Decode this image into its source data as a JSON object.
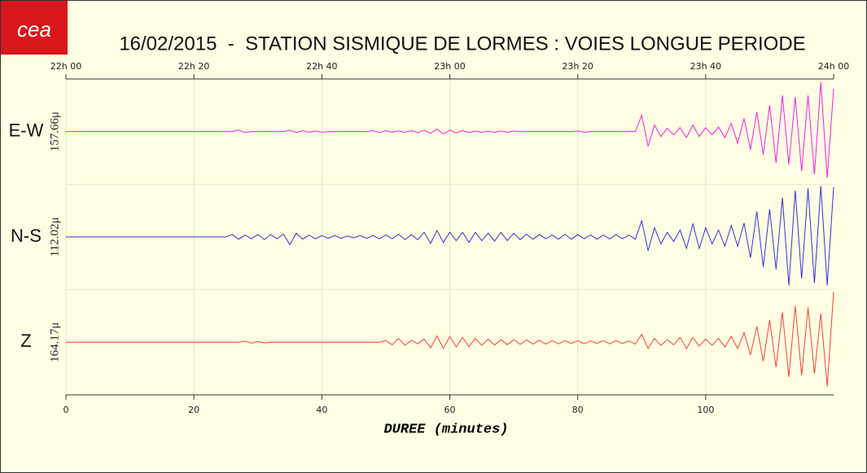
{
  "logo": "cea",
  "chart_data": {
    "type": "seismogram",
    "title": "16/02/2015  -  STATION SISMIQUE DE LORMES : VOIES LONGUE PERIODE",
    "xlabel": "DUREE (minutes)",
    "xlim": [
      0,
      120
    ],
    "xticks": [
      0,
      20,
      40,
      60,
      80,
      100
    ],
    "x2ticks": [
      {
        "value": 0,
        "label": "22h 00"
      },
      {
        "value": 20,
        "label": "22h 20"
      },
      {
        "value": 40,
        "label": "22h 40"
      },
      {
        "value": 60,
        "label": "23h 00"
      },
      {
        "value": 80,
        "label": "23h 20"
      },
      {
        "value": 100,
        "label": "23h 40"
      },
      {
        "value": 120,
        "label": "24h 00"
      }
    ],
    "grid": true,
    "x": [
      0,
      1,
      2,
      3,
      4,
      5,
      6,
      7,
      8,
      9,
      10,
      11,
      12,
      13,
      14,
      15,
      16,
      17,
      18,
      19,
      20,
      21,
      22,
      23,
      24,
      25,
      26,
      27,
      28,
      29,
      30,
      31,
      32,
      33,
      34,
      35,
      36,
      37,
      38,
      39,
      40,
      41,
      42,
      43,
      44,
      45,
      46,
      47,
      48,
      49,
      50,
      51,
      52,
      53,
      54,
      55,
      56,
      57,
      58,
      59,
      60,
      61,
      62,
      63,
      64,
      65,
      66,
      67,
      68,
      69,
      70,
      71,
      72,
      73,
      74,
      75,
      76,
      77,
      78,
      79,
      80,
      81,
      82,
      83,
      84,
      85,
      86,
      87,
      88,
      89,
      90,
      91,
      92,
      93,
      94,
      95,
      96,
      97,
      98,
      99,
      100,
      101,
      102,
      103,
      104,
      105,
      106,
      107,
      108,
      109,
      110,
      111,
      112,
      113,
      114,
      115,
      116,
      117,
      118,
      119,
      120
    ],
    "series": [
      {
        "name": "E-W",
        "scale_label": "157.66μ",
        "ylim": [
          -157.66,
          157.66
        ],
        "color": "#ee22dd",
        "values": [
          0,
          0,
          0,
          0,
          0,
          0,
          0,
          0,
          0,
          0,
          0,
          0,
          0,
          0,
          0,
          0,
          0,
          0,
          0,
          0,
          0,
          0,
          0,
          0,
          0,
          0,
          0,
          5,
          -3,
          0,
          0,
          0,
          0,
          0,
          0,
          4,
          -3,
          3,
          -2,
          2,
          -2,
          0,
          0,
          0,
          0,
          0,
          0,
          0,
          3,
          -3,
          3,
          -2,
          2,
          -2,
          3,
          -3,
          4,
          -5,
          8,
          -7,
          5,
          -4,
          3,
          -3,
          2,
          -2,
          2,
          -2,
          2,
          -2,
          2,
          0,
          0,
          0,
          0,
          0,
          0,
          0,
          0,
          0,
          2,
          -2,
          0,
          0,
          0,
          0,
          0,
          0,
          0,
          0,
          50,
          -45,
          20,
          -15,
          10,
          -10,
          12,
          -18,
          20,
          -15,
          12,
          -10,
          14,
          -18,
          25,
          -35,
          40,
          -55,
          60,
          -70,
          80,
          -95,
          110,
          -100,
          105,
          -120,
          110,
          -130,
          150,
          -140,
          130
        ]
      },
      {
        "name": "N-S",
        "scale_label": "112.02μ",
        "ylim": [
          -112.02,
          112.02
        ],
        "color": "#3333dd",
        "values": [
          0,
          0,
          0,
          0,
          0,
          0,
          0,
          0,
          0,
          0,
          0,
          0,
          0,
          0,
          0,
          0,
          0,
          0,
          0,
          0,
          0,
          0,
          0,
          0,
          0,
          0,
          5,
          -5,
          4,
          -4,
          5,
          -6,
          5,
          -4,
          6,
          -17,
          8,
          -5,
          4,
          -4,
          3,
          -3,
          3,
          -3,
          2,
          -2,
          3,
          -3,
          3,
          -4,
          4,
          -4,
          6,
          -6,
          5,
          -6,
          10,
          -14,
          14,
          -12,
          10,
          -8,
          10,
          -12,
          10,
          -8,
          8,
          -9,
          10,
          -8,
          8,
          -6,
          6,
          -5,
          5,
          -4,
          4,
          -5,
          6,
          -5,
          5,
          -4,
          4,
          -5,
          4,
          -4,
          5,
          -4,
          4,
          -5,
          35,
          -30,
          20,
          -15,
          10,
          -10,
          15,
          -25,
          28,
          -25,
          20,
          -15,
          15,
          -20,
          25,
          -20,
          30,
          -45,
          55,
          -65,
          60,
          -70,
          85,
          -105,
          100,
          -90,
          105,
          -100,
          110,
          -105,
          108
        ]
      },
      {
        "name": "Z",
        "scale_label": "164.17μ",
        "ylim": [
          -164.17,
          164.17
        ],
        "color": "#ee4433",
        "values": [
          0,
          0,
          0,
          0,
          0,
          0,
          0,
          0,
          0,
          0,
          0,
          0,
          0,
          0,
          0,
          0,
          0,
          0,
          0,
          0,
          0,
          0,
          0,
          0,
          0,
          0,
          0,
          0,
          3,
          -3,
          2,
          -2,
          0,
          0,
          0,
          0,
          0,
          0,
          0,
          0,
          0,
          0,
          0,
          0,
          0,
          0,
          0,
          0,
          0,
          0,
          5,
          -8,
          12,
          -10,
          6,
          -5,
          10,
          -18,
          20,
          -20,
          18,
          -15,
          15,
          -14,
          12,
          -10,
          10,
          -9,
          8,
          -8,
          8,
          -7,
          7,
          -6,
          6,
          -6,
          5,
          -5,
          5,
          -4,
          5,
          -5,
          4,
          -4,
          5,
          -5,
          5,
          -4,
          4,
          -6,
          25,
          -20,
          12,
          -10,
          8,
          -8,
          15,
          -20,
          15,
          -12,
          10,
          -10,
          12,
          -15,
          18,
          -20,
          30,
          -40,
          50,
          -60,
          70,
          -80,
          95,
          -110,
          115,
          -105,
          110,
          -100,
          90,
          -140,
          160
        ]
      }
    ]
  }
}
